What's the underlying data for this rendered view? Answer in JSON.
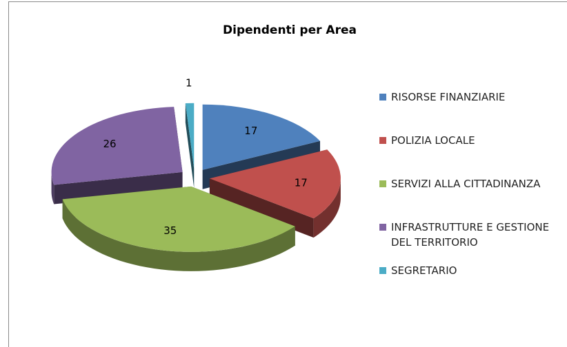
{
  "chart_data": {
    "type": "pie",
    "title": "Dipendenti per Area",
    "categories": [
      "RISORSE FINANZIARIE",
      "POLIZIA LOCALE",
      "SERVIZI ALLA CITTADINANZA",
      "INFRASTRUTTURE E GESTIONE DEL TERRITORIO",
      "SEGRETARIO"
    ],
    "values": [
      17,
      17,
      35,
      26,
      1
    ],
    "colors": [
      "#4f81bd",
      "#c0504d",
      "#9bbb59",
      "#8064a2",
      "#4bacc6"
    ],
    "legend": "right"
  }
}
